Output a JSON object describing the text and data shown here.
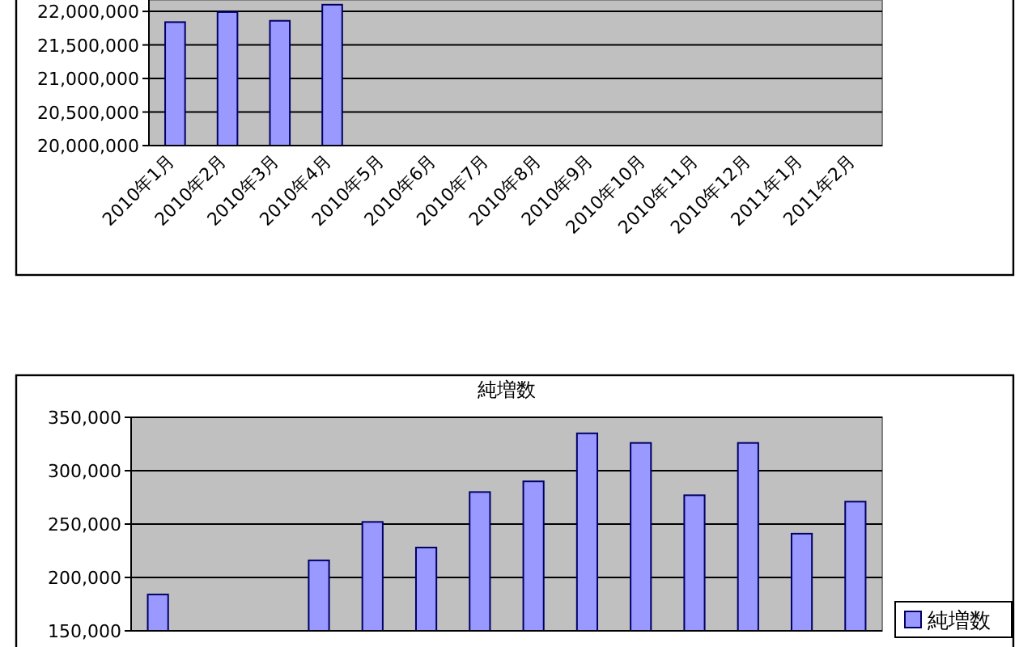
{
  "chart_data": [
    {
      "type": "bar",
      "categories": [
        "2010年1月",
        "2010年2月",
        "2010年3月",
        "2010年4月",
        "2010年5月",
        "2010年6月",
        "2010年7月",
        "2010年8月",
        "2010年9月",
        "2010年10月",
        "2010年11月",
        "2010年12月",
        "2011年1月",
        "2011年2月"
      ],
      "values": [
        21840000,
        21990000,
        21860000,
        22100000,
        null,
        null,
        null,
        null,
        null,
        null,
        null,
        null,
        null,
        null
      ],
      "color": "#9999ff",
      "ylim": [
        20000000,
        22170000
      ],
      "yticks": [
        {
          "value": 20000000,
          "label": "20,000,000"
        },
        {
          "value": 20500000,
          "label": "20,500,000"
        },
        {
          "value": 21000000,
          "label": "21,000,000"
        },
        {
          "value": 21500000,
          "label": "21,500,000"
        },
        {
          "value": 22000000,
          "label": "22,000,000"
        }
      ],
      "grid": "y"
    },
    {
      "type": "bar",
      "title": "純増数",
      "categories": [
        null,
        null,
        null,
        null,
        null,
        null,
        null,
        null,
        null,
        null,
        null,
        null,
        null,
        null
      ],
      "series": [
        {
          "name": "純増数",
          "color": "#9999ff",
          "values": [
            184000,
            null,
            null,
            216000,
            252000,
            228000,
            280000,
            290000,
            335000,
            326000,
            277000,
            326000,
            241000,
            271000
          ]
        }
      ],
      "ylim": [
        150000,
        350000
      ],
      "yticks": [
        {
          "value": 150000,
          "label": "150,000"
        },
        {
          "value": 200000,
          "label": "200,000"
        },
        {
          "value": 250000,
          "label": "250,000"
        },
        {
          "value": 300000,
          "label": "300,000"
        },
        {
          "value": 350000,
          "label": "350,000"
        }
      ],
      "grid": "y",
      "legend": "right",
      "tick_labels": "y"
    }
  ]
}
